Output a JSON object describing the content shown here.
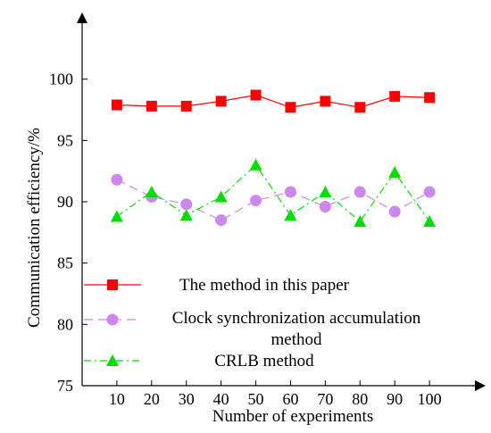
{
  "chart_data": {
    "type": "line",
    "title": "",
    "xlabel": "Number of experiments",
    "ylabel": "Communication efficiency/%",
    "x": [
      10,
      20,
      30,
      40,
      50,
      60,
      70,
      80,
      90,
      100
    ],
    "xlim": [
      0,
      110
    ],
    "ylim": [
      75,
      105
    ],
    "yticks": [
      75,
      80,
      85,
      90,
      95,
      100
    ],
    "grid": false,
    "legend_position": "bottom-left",
    "series": [
      {
        "name": "The method in this paper",
        "values": [
          97.9,
          97.8,
          97.8,
          98.2,
          98.7,
          97.7,
          98.2,
          97.7,
          98.6,
          98.5
        ],
        "color": "#ff0000",
        "marker": "square",
        "line_style": "solid"
      },
      {
        "name": "Clock synchronization accumulation method",
        "values": [
          91.8,
          90.4,
          89.8,
          88.5,
          90.1,
          90.8,
          89.6,
          90.8,
          89.2,
          90.8
        ],
        "color": "#cc88ee",
        "marker": "circle",
        "line_style": "dashed"
      },
      {
        "name": "CRLB method",
        "values": [
          88.8,
          90.8,
          88.9,
          90.4,
          93.0,
          88.9,
          90.8,
          88.4,
          92.4,
          88.4
        ],
        "color": "#00dd00",
        "marker": "triangle",
        "line_style": "dashdot"
      }
    ],
    "legend_lines": [
      [
        "The method in this paper"
      ],
      [
        "Clock synchronization accumulation",
        "method"
      ],
      [
        "CRLB method"
      ]
    ]
  }
}
